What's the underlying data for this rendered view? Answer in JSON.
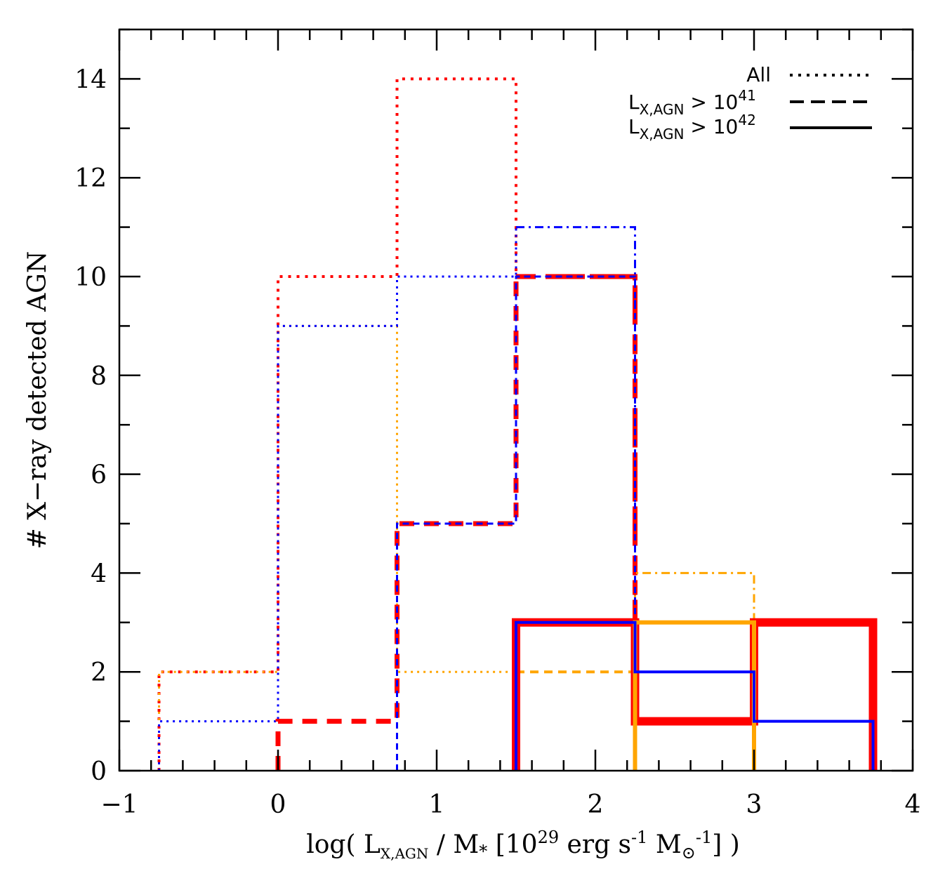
{
  "chart_data": {
    "type": "histogram-step",
    "xlabel": {
      "pre": "log( L",
      "sub": "X,AGN",
      "mid": " / M",
      "sub2": "*",
      "mid2": " [10",
      "sup": "29",
      "mid3": " erg s",
      "sup2": "-1",
      "mid4": " M",
      "sub3": "⊙",
      "sup3": "-1",
      "post": "] )"
    },
    "ylabel": "# X−ray detected AGN",
    "xlim": [
      -1,
      4
    ],
    "ylim": [
      0,
      15
    ],
    "xticks": [
      -1,
      0,
      1,
      2,
      3,
      4
    ],
    "xtick_labels": [
      "−1",
      "0",
      "1",
      "2",
      "3",
      "4"
    ],
    "yticks": [
      0,
      2,
      4,
      6,
      8,
      10,
      12,
      14
    ],
    "ytick_labels": [
      "0",
      "2",
      "4",
      "6",
      "8",
      "10",
      "12",
      "14"
    ],
    "legend": {
      "placement": "top-right",
      "entries": [
        {
          "label": "All",
          "style": "dotted"
        },
        {
          "label_pre": "L",
          "label_sub": "X,AGN",
          "label_mid": " > 10",
          "label_sup": "41",
          "style": "dashed"
        },
        {
          "label_pre": "L",
          "label_sub": "X,AGN",
          "label_mid": " > 10",
          "label_sup": "42",
          "style": "solid"
        }
      ]
    },
    "colors": {
      "red": "#ff0000",
      "blue": "#0000ff",
      "orange": "#ffa500"
    },
    "series": [
      {
        "name": "red-all",
        "color": "red",
        "style": "dotted",
        "width": 4,
        "edges": [
          -0.75,
          0,
          0.75,
          1.5
        ],
        "values": [
          2,
          10,
          14
        ],
        "end": 10
      },
      {
        "name": "orange-all",
        "color": "orange",
        "style": "dotted",
        "width": 3,
        "edges": [
          -0.75,
          0,
          0.75,
          1.5
        ],
        "values": [
          2,
          9,
          2
        ],
        "end": 2
      },
      {
        "name": "blue-all",
        "color": "blue",
        "style": "dotted",
        "width": 3,
        "edges": [
          -0.75,
          0,
          0.75,
          1.5
        ],
        "values": [
          1,
          9,
          10
        ],
        "end": 11
      },
      {
        "name": "red-dashdot",
        "color": "red",
        "style": "dashdot",
        "width": 7,
        "edges": [
          1.5,
          2.25
        ],
        "values": [
          10
        ],
        "start": 10,
        "end": 3
      },
      {
        "name": "blue-dashdot",
        "color": "blue",
        "style": "dashdot",
        "width": 3,
        "edges": [
          1.5,
          2.25
        ],
        "values": [
          11
        ],
        "start": 11,
        "end": 3
      },
      {
        "name": "orange-dashdot",
        "color": "orange",
        "style": "dashdot",
        "width": 3,
        "edges": [
          2.25,
          3.0
        ],
        "values": [
          4
        ],
        "start": 3,
        "end": 3
      },
      {
        "name": "red-41",
        "color": "red",
        "style": "dashed",
        "width": 7,
        "edges": [
          0,
          0.75,
          1.5,
          2.25
        ],
        "values": [
          1,
          5,
          10
        ],
        "end": 3
      },
      {
        "name": "blue-41",
        "color": "blue",
        "style": "dashed",
        "width": 3,
        "edges": [
          0.75,
          1.5,
          2.25
        ],
        "values": [
          5,
          10
        ],
        "end": 3
      },
      {
        "name": "orange-41",
        "color": "orange",
        "style": "dashed",
        "width": 4,
        "edges": [
          1.5,
          2.25
        ],
        "values": [
          2
        ],
        "start": 2,
        "end": 2
      },
      {
        "name": "red-42",
        "color": "red",
        "style": "solid",
        "width": 12,
        "edges": [
          1.5,
          2.25,
          3.0,
          3.75
        ],
        "values": [
          3,
          1,
          3
        ]
      },
      {
        "name": "orange-42",
        "color": "orange",
        "style": "solid",
        "width": 6,
        "edges": [
          2.25,
          3.0
        ],
        "values": [
          3
        ]
      },
      {
        "name": "blue-42",
        "color": "blue",
        "style": "solid",
        "width": 4,
        "edges": [
          1.5,
          2.25,
          3.0,
          3.75
        ],
        "values": [
          3,
          2,
          1
        ]
      }
    ]
  }
}
